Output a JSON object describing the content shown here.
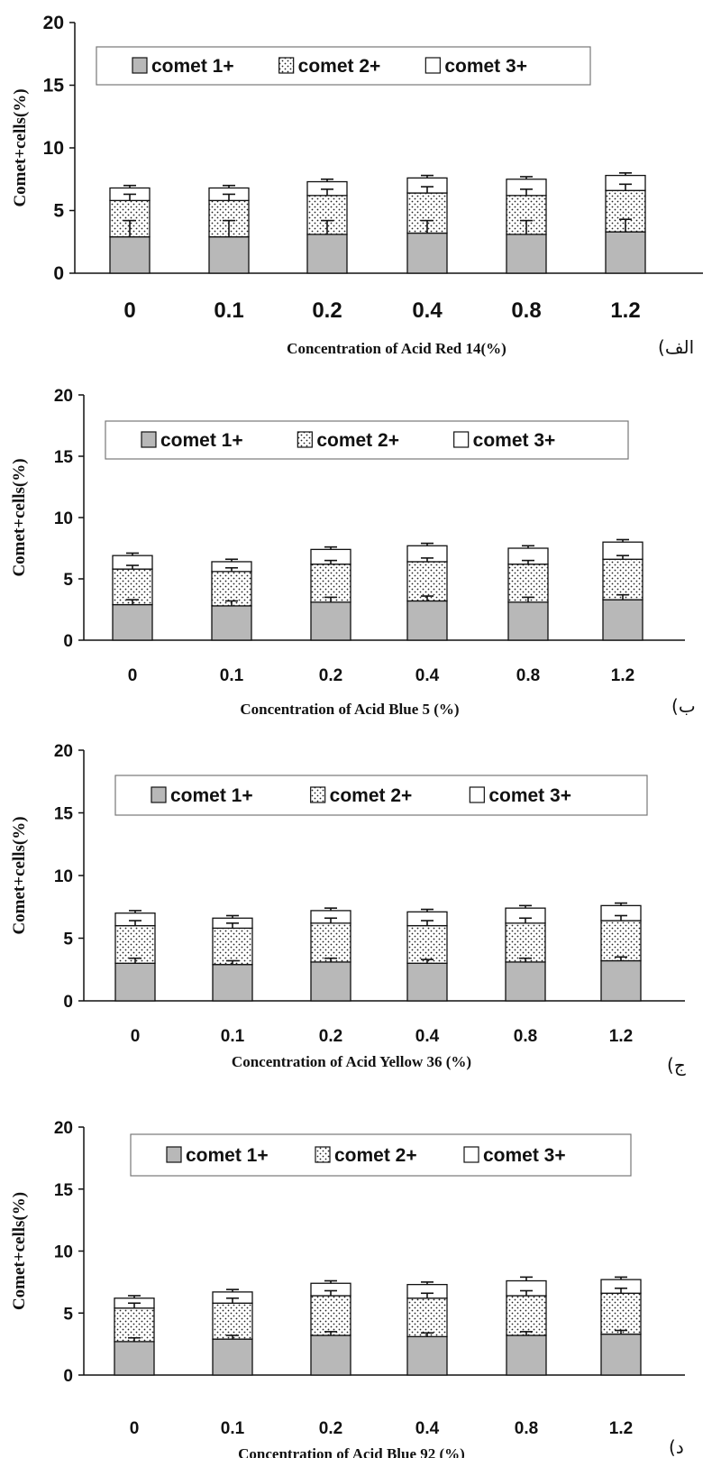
{
  "chart_data": [
    {
      "type": "bar",
      "stacked": true,
      "panel_label": "(الف",
      "categories": [
        "0",
        "0.1",
        "0.2",
        "0.4",
        "0.8",
        "1.2"
      ],
      "series": [
        {
          "name": "comet 1+",
          "values": [
            2.9,
            2.9,
            3.1,
            3.2,
            3.1,
            3.3
          ],
          "errors": [
            1.3,
            1.3,
            1.1,
            1.0,
            1.1,
            1.0
          ],
          "color": "#b8b8b8",
          "pattern": "solid"
        },
        {
          "name": "comet 2+",
          "values": [
            2.9,
            2.9,
            3.1,
            3.2,
            3.1,
            3.3
          ],
          "errors": [
            0.5,
            0.5,
            0.5,
            0.5,
            0.5,
            0.5
          ],
          "color": "#ffffff",
          "pattern": "dots"
        },
        {
          "name": "comet 3+",
          "values": [
            1.0,
            1.0,
            1.1,
            1.2,
            1.3,
            1.2
          ],
          "errors": [
            0.2,
            0.2,
            0.2,
            0.2,
            0.2,
            0.2
          ],
          "color": "#ffffff",
          "pattern": "none"
        }
      ],
      "xlabel": "Concentration of Acid Red 14(%)",
      "ylabel": "Comet+cells(%)",
      "ylim": [
        0,
        20
      ],
      "yticks": [
        "0",
        "5",
        "10",
        "15",
        "20"
      ],
      "legend": "top"
    },
    {
      "type": "bar",
      "stacked": true,
      "panel_label": "(ب",
      "categories": [
        "0",
        "0.1",
        "0.2",
        "0.4",
        "0.8",
        "1.2"
      ],
      "series": [
        {
          "name": "comet 1+",
          "values": [
            2.9,
            2.8,
            3.1,
            3.2,
            3.1,
            3.3
          ],
          "errors": [
            0.4,
            0.4,
            0.4,
            0.4,
            0.4,
            0.4
          ],
          "color": "#b8b8b8",
          "pattern": "solid"
        },
        {
          "name": "comet 2+",
          "values": [
            2.9,
            2.8,
            3.1,
            3.2,
            3.1,
            3.3
          ],
          "errors": [
            0.3,
            0.3,
            0.3,
            0.3,
            0.3,
            0.3
          ],
          "color": "#ffffff",
          "pattern": "dots"
        },
        {
          "name": "comet 3+",
          "values": [
            1.1,
            0.8,
            1.2,
            1.3,
            1.3,
            1.4
          ],
          "errors": [
            0.2,
            0.2,
            0.2,
            0.2,
            0.2,
            0.2
          ],
          "color": "#ffffff",
          "pattern": "none"
        }
      ],
      "xlabel": "Concentration of Acid Blue 5  (%)",
      "ylabel": "Comet+cells(%)",
      "ylim": [
        0,
        20
      ],
      "yticks": [
        "0",
        "5",
        "10",
        "15",
        "20"
      ],
      "legend": "top"
    },
    {
      "type": "bar",
      "stacked": true,
      "panel_label": "(ج",
      "categories": [
        "0",
        "0.1",
        "0.2",
        "0.4",
        "0.8",
        "1.2"
      ],
      "series": [
        {
          "name": "comet 1+",
          "values": [
            3.0,
            2.9,
            3.1,
            3.0,
            3.1,
            3.2
          ],
          "errors": [
            0.4,
            0.3,
            0.3,
            0.3,
            0.3,
            0.3
          ],
          "color": "#b8b8b8",
          "pattern": "solid"
        },
        {
          "name": "comet 2+",
          "values": [
            3.0,
            2.9,
            3.1,
            3.0,
            3.1,
            3.2
          ],
          "errors": [
            0.4,
            0.4,
            0.4,
            0.4,
            0.4,
            0.4
          ],
          "color": "#ffffff",
          "pattern": "dots"
        },
        {
          "name": "comet 3+",
          "values": [
            1.0,
            0.8,
            1.0,
            1.1,
            1.2,
            1.2
          ],
          "errors": [
            0.2,
            0.2,
            0.2,
            0.2,
            0.2,
            0.2
          ],
          "color": "#ffffff",
          "pattern": "none"
        }
      ],
      "xlabel": "Concentration of Acid Yellow 36 (%)",
      "ylabel": "Comet+cells(%)",
      "ylim": [
        0,
        20
      ],
      "yticks": [
        "0",
        "5",
        "10",
        "15",
        "20"
      ],
      "legend": "top"
    },
    {
      "type": "bar",
      "stacked": true,
      "panel_label": "(د",
      "categories": [
        "0",
        "0.1",
        "0.2",
        "0.4",
        "0.8",
        "1.2"
      ],
      "series": [
        {
          "name": "comet 1+",
          "values": [
            2.7,
            2.9,
            3.2,
            3.1,
            3.2,
            3.3
          ],
          "errors": [
            0.3,
            0.3,
            0.3,
            0.3,
            0.3,
            0.3
          ],
          "color": "#b8b8b8",
          "pattern": "solid"
        },
        {
          "name": "comet 2+",
          "values": [
            2.7,
            2.9,
            3.2,
            3.1,
            3.2,
            3.3
          ],
          "errors": [
            0.4,
            0.4,
            0.4,
            0.4,
            0.4,
            0.4
          ],
          "color": "#ffffff",
          "pattern": "dots"
        },
        {
          "name": "comet 3+",
          "values": [
            0.8,
            0.9,
            1.0,
            1.1,
            1.2,
            1.1
          ],
          "errors": [
            0.2,
            0.2,
            0.2,
            0.2,
            0.3,
            0.2
          ],
          "color": "#ffffff",
          "pattern": "none"
        }
      ],
      "xlabel": "Concentration of Acid Blue 92 (%)",
      "ylabel": "Comet+cells(%)",
      "ylim": [
        0,
        20
      ],
      "yticks": [
        "0",
        "5",
        "10",
        "15",
        "20"
      ],
      "legend": "top"
    }
  ]
}
